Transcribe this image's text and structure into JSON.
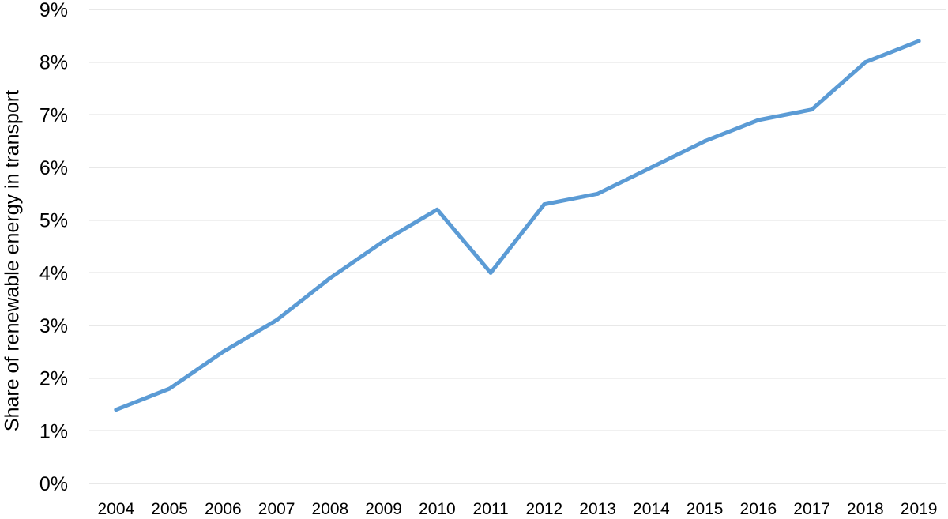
{
  "chart_data": {
    "type": "line",
    "title": "",
    "xlabel": "",
    "ylabel": "Share of renewable energy in transport",
    "categories": [
      "2004",
      "2005",
      "2006",
      "2007",
      "2008",
      "2009",
      "2010",
      "2011",
      "2012",
      "2013",
      "2014",
      "2015",
      "2016",
      "2017",
      "2018",
      "2019"
    ],
    "series": [
      {
        "values": [
          1.4,
          1.8,
          2.5,
          3.1,
          3.9,
          4.6,
          5.2,
          4.0,
          5.3,
          5.5,
          6.0,
          6.5,
          6.9,
          7.1,
          8.0,
          8.4
        ],
        "color": "#5B9BD5"
      }
    ],
    "ylim": [
      0,
      9
    ],
    "yticks": [
      "0%",
      "1%",
      "2%",
      "3%",
      "4%",
      "5%",
      "6%",
      "7%",
      "8%",
      "9%"
    ],
    "grid": true,
    "gridColor": "#D9D9D9",
    "legend": "none"
  }
}
